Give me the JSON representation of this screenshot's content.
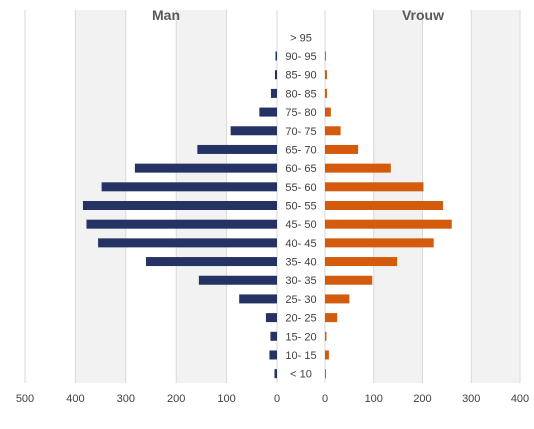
{
  "chart_data": {
    "type": "bar",
    "orientation": "horizontal",
    "layout": "population-pyramid",
    "grid": true,
    "panels": [
      {
        "title": "Man",
        "xlim": [
          0,
          500
        ],
        "xticks": [
          500,
          400,
          300,
          200,
          100,
          0
        ],
        "direction": "reversed",
        "color": "#253264"
      },
      {
        "title": "Vrouw",
        "xlim": [
          0,
          400
        ],
        "xticks": [
          0,
          100,
          200,
          300,
          400
        ],
        "direction": "normal",
        "color": "#D45A0C"
      }
    ],
    "categories": [
      "< 10",
      "10- 15",
      "15- 20",
      "20- 25",
      "25- 30",
      "30- 35",
      "35- 40",
      "40- 45",
      "45- 50",
      "50- 55",
      "55- 60",
      "60- 65",
      "65- 70",
      "70- 75",
      "75- 80",
      "80- 85",
      "85- 90",
      "90- 95",
      "> 95"
    ],
    "series": [
      {
        "name": "Man",
        "values": [
          5,
          15,
          13,
          22,
          75,
          155,
          260,
          355,
          378,
          385,
          348,
          282,
          158,
          92,
          35,
          12,
          4,
          3,
          0
        ]
      },
      {
        "name": "Vrouw",
        "values": [
          2,
          8,
          3,
          25,
          50,
          97,
          148,
          223,
          260,
          242,
          202,
          135,
          68,
          32,
          12,
          4,
          4,
          2,
          0
        ]
      }
    ]
  }
}
